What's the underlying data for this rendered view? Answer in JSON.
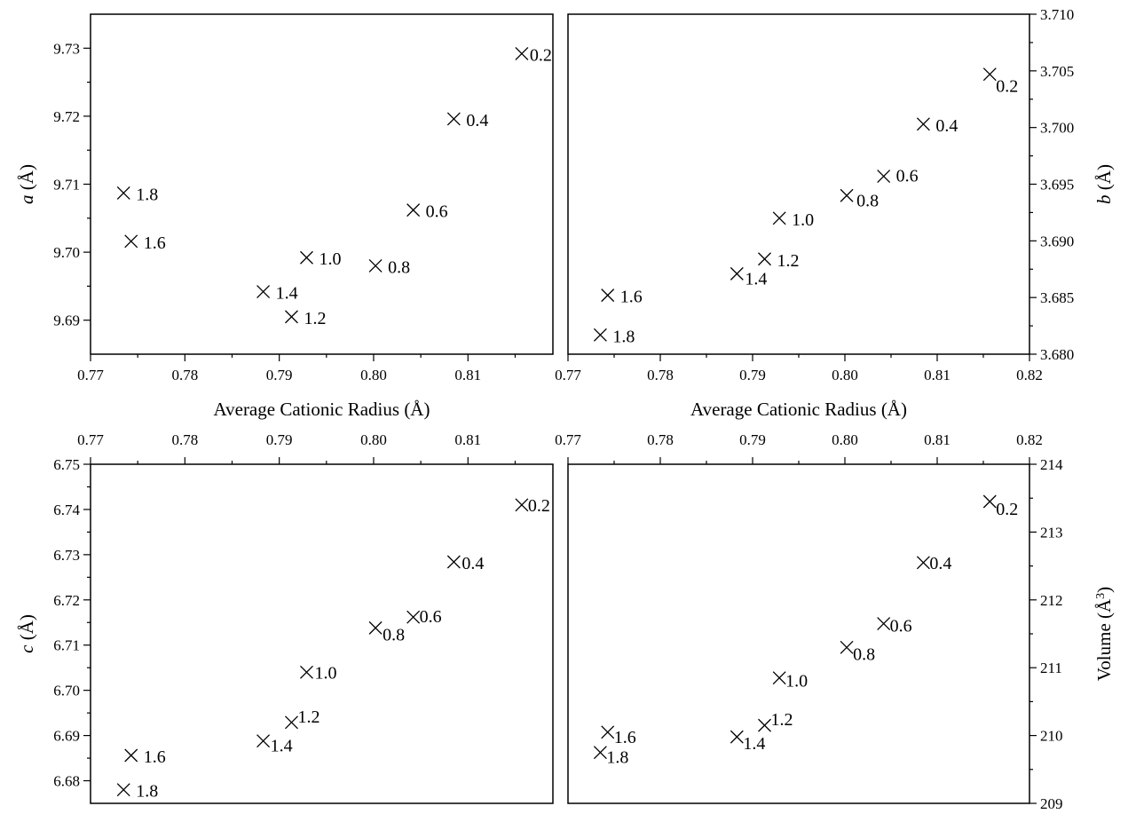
{
  "chart_data": [
    {
      "type": "scatter",
      "panel": "top-left",
      "xlabel": "Average Cationic Radius (Å)",
      "ylabel": "a (Å)",
      "ylabel_italic": "a",
      "ylabel_rest": " (Å)",
      "xlim": [
        0.77,
        0.819
      ],
      "ylim": [
        9.685,
        9.735
      ],
      "xticks": [
        "0.77",
        "0.78",
        "0.79",
        "0.80",
        "0.81"
      ],
      "yticks": [
        "9.69",
        "9.70",
        "9.71",
        "9.72",
        "9.73"
      ],
      "points": [
        {
          "x": 0.7735,
          "y": 9.7087,
          "label": "1.8"
        },
        {
          "x": 0.7743,
          "y": 9.7016,
          "label": "1.6"
        },
        {
          "x": 0.7883,
          "y": 9.6942,
          "label": "1.4"
        },
        {
          "x": 0.7913,
          "y": 9.6905,
          "label": "1.2"
        },
        {
          "x": 0.7929,
          "y": 9.6992,
          "label": "1.0"
        },
        {
          "x": 0.8002,
          "y": 9.698,
          "label": "0.8"
        },
        {
          "x": 0.8042,
          "y": 9.7062,
          "label": "0.6"
        },
        {
          "x": 0.8085,
          "y": 9.7196,
          "label": "0.4"
        },
        {
          "x": 0.8157,
          "y": 9.7292,
          "label": "0.2"
        }
      ]
    },
    {
      "type": "scatter",
      "panel": "top-right",
      "xlabel": "Average Cationic Radius (Å)",
      "ylabel": "b (Å)",
      "ylabel_italic": "b",
      "ylabel_rest": " (Å)",
      "xlim": [
        0.77,
        0.82
      ],
      "ylim": [
        3.68,
        3.71
      ],
      "xticks": [
        "0.77",
        "0.78",
        "0.79",
        "0.80",
        "0.81",
        "0.82"
      ],
      "yticks": [
        "3.680",
        "3.685",
        "3.690",
        "3.695",
        "3.700",
        "3.705",
        "3.710"
      ],
      "points": [
        {
          "x": 0.7735,
          "y": 3.6817,
          "label": "1.8"
        },
        {
          "x": 0.7743,
          "y": 3.6852,
          "label": "1.6"
        },
        {
          "x": 0.7883,
          "y": 3.6871,
          "label": "1.4"
        },
        {
          "x": 0.7913,
          "y": 3.6884,
          "label": "1.2"
        },
        {
          "x": 0.7929,
          "y": 3.692,
          "label": "1.0"
        },
        {
          "x": 0.8002,
          "y": 3.694,
          "label": "0.8"
        },
        {
          "x": 0.8042,
          "y": 3.6957,
          "label": "0.6"
        },
        {
          "x": 0.8085,
          "y": 3.7003,
          "label": "0.4"
        },
        {
          "x": 0.8157,
          "y": 3.7047,
          "label": "0.2"
        }
      ]
    },
    {
      "type": "scatter",
      "panel": "bottom-left",
      "xlabel": "",
      "ylabel": "c (Å)",
      "ylabel_italic": "c",
      "ylabel_rest": " (Å)",
      "xlim": [
        0.77,
        0.819
      ],
      "ylim": [
        6.675,
        6.75
      ],
      "xticks": [
        "0.77",
        "0.78",
        "0.79",
        "0.80",
        "0.81"
      ],
      "yticks": [
        "6.68",
        "6.69",
        "6.70",
        "6.71",
        "6.72",
        "6.73",
        "6.74",
        "6.75"
      ],
      "points": [
        {
          "x": 0.7735,
          "y": 6.678,
          "label": "1.8"
        },
        {
          "x": 0.7743,
          "y": 6.6856,
          "label": "1.6"
        },
        {
          "x": 0.7883,
          "y": 6.6888,
          "label": "1.4"
        },
        {
          "x": 0.7913,
          "y": 6.6929,
          "label": "1.2"
        },
        {
          "x": 0.7929,
          "y": 6.704,
          "label": "1.0"
        },
        {
          "x": 0.8002,
          "y": 6.7138,
          "label": "0.8"
        },
        {
          "x": 0.8042,
          "y": 6.7162,
          "label": "0.6"
        },
        {
          "x": 0.8085,
          "y": 6.7284,
          "label": "0.4"
        },
        {
          "x": 0.8157,
          "y": 6.741,
          "label": "0.2"
        }
      ]
    },
    {
      "type": "scatter",
      "panel": "bottom-right",
      "xlabel": "",
      "ylabel": "Volume (Å3)",
      "ylabel_main": "Volume (Å",
      "ylabel_sup": "3",
      "ylabel_end": ")",
      "xlim": [
        0.77,
        0.82
      ],
      "ylim": [
        209,
        214
      ],
      "xticks": [
        "0.77",
        "0.78",
        "0.79",
        "0.80",
        "0.81",
        "0.82"
      ],
      "yticks": [
        "209",
        "210",
        "211",
        "212",
        "213",
        "214"
      ],
      "points": [
        {
          "x": 0.7735,
          "y": 209.75,
          "label": "1.8"
        },
        {
          "x": 0.7743,
          "y": 210.05,
          "label": "1.6"
        },
        {
          "x": 0.7883,
          "y": 209.98,
          "label": "1.4"
        },
        {
          "x": 0.7913,
          "y": 210.15,
          "label": "1.2"
        },
        {
          "x": 0.7929,
          "y": 210.85,
          "label": "1.0"
        },
        {
          "x": 0.8002,
          "y": 211.3,
          "label": "0.8"
        },
        {
          "x": 0.8042,
          "y": 211.65,
          "label": "0.6"
        },
        {
          "x": 0.8085,
          "y": 212.55,
          "label": "0.4"
        },
        {
          "x": 0.8157,
          "y": 213.45,
          "label": "0.2"
        }
      ]
    }
  ]
}
